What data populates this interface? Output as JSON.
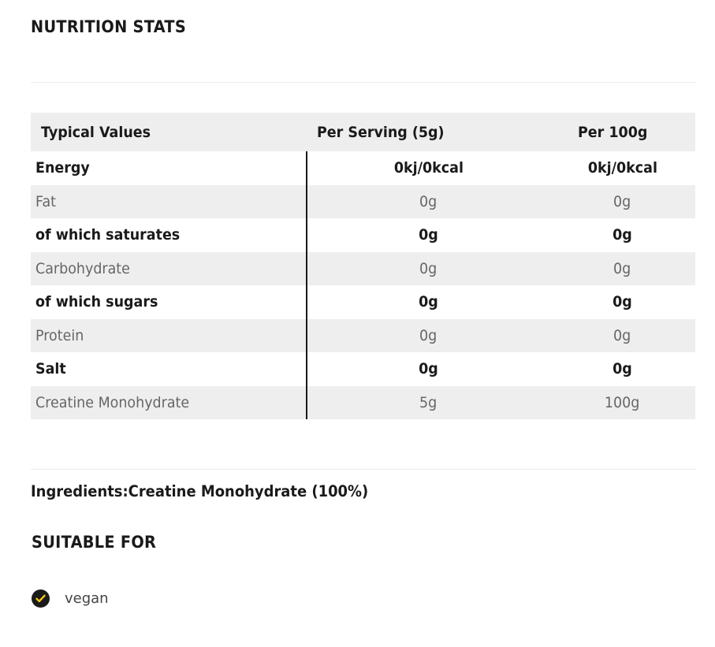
{
  "nutrition": {
    "title": "NUTRITION STATS",
    "headers": [
      "Typical Values",
      "Per Serving (5g)",
      "Per 100g"
    ],
    "rows": [
      {
        "label": "Energy",
        "serving": "0kj/0kcal",
        "per100": "0kj/0kcal",
        "style": "bold",
        "shaded": false
      },
      {
        "label": "Fat",
        "serving": "0g",
        "per100": "0g",
        "style": "light",
        "shaded": true
      },
      {
        "label": "of which saturates",
        "serving": "0g",
        "per100": "0g",
        "style": "bold",
        "shaded": false
      },
      {
        "label": "Carbohydrate",
        "serving": "0g",
        "per100": "0g",
        "style": "light",
        "shaded": true
      },
      {
        "label": "of which sugars",
        "serving": "0g",
        "per100": "0g",
        "style": "bold",
        "shaded": false
      },
      {
        "label": "Protein",
        "serving": "0g",
        "per100": "0g",
        "style": "light",
        "shaded": true
      },
      {
        "label": "Salt",
        "serving": "0g",
        "per100": "0g",
        "style": "bold",
        "shaded": false
      },
      {
        "label": "Creatine Monohydrate",
        "serving": "5g",
        "per100": "100g",
        "style": "light",
        "shaded": true
      }
    ]
  },
  "ingredients": {
    "label": "Ingredients:",
    "value": "Creatine Monohydrate (100%)"
  },
  "suitable": {
    "title": "SUITABLE FOR",
    "items": [
      {
        "label": "vegan",
        "icon": "check-circle-icon"
      }
    ]
  },
  "colors": {
    "text": "#1a1a1a",
    "muted": "#666666",
    "shade": "#eeeeee",
    "check_accent": "#f5c518"
  }
}
